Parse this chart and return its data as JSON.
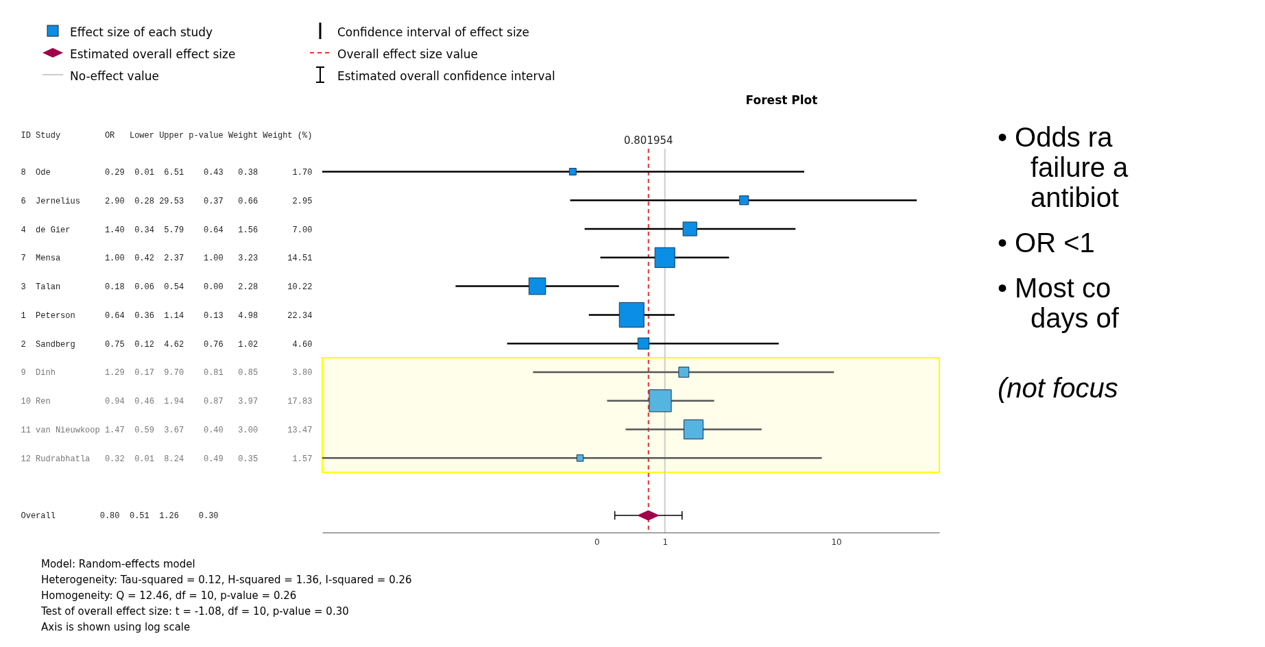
{
  "chart_data": {
    "type": "scatter",
    "orientation": "horizontal",
    "title": "Forest Plot",
    "ylabel": "ID Study         OR   Lower Upper p-value Weight Weight (%)",
    "categories": [
      "8  Ode           0.29  0.01  6.51    0.43   0.38       1.70",
      "6  Jernelius     2.90  0.28 29.53    0.37   0.66       2.95",
      "4  de Gier       1.40  0.34  5.79    0.64   1.56       7.00",
      "7  Mensa         1.00  0.42  2.37    1.00   3.23      14.51",
      "3  Talan         0.18  0.06  0.54    0.00   2.28      10.22",
      "1  Peterson      0.64  0.36  1.14    0.13   4.98      22.34",
      "2  Sandberg      0.75  0.12  4.62    0.76   1.02       4.60",
      "9  Dinh          1.29  0.17  9.70    0.81   0.85       3.80",
      "10 Ren           0.94  0.46  1.94    0.87   3.97      17.83",
      "11 van Nieuwkoop 1.47  0.59  3.67    0.40   3.00      13.47",
      "12 Rudrabhatla   0.32  0.01  8.24    0.49   0.35       1.57",
      null,
      "Overall         0.80  0.51  1.26    0.30"
    ],
    "series": [
      {
        "name": "Effect size of each study",
        "color": "#0a8ee6",
        "marker": "square",
        "colors": [
          "#0a8ee6",
          "#0a8ee6",
          "#0a8ee6",
          "#0a8ee6",
          "#0a8ee6",
          "#0a8ee6",
          "#0a8ee6",
          "#56b4e0",
          "#56b4e0",
          "#56b4e0",
          "#56b4e0",
          null,
          null
        ],
        "values": [
          0.29,
          2.9,
          1.4,
          1.0,
          0.18,
          0.64,
          0.75,
          1.29,
          0.94,
          1.47,
          0.32,
          null,
          null
        ],
        "errors": [
          [
            0.01,
            6.51
          ],
          [
            0.28,
            29.53
          ],
          [
            0.34,
            5.79
          ],
          [
            0.42,
            2.37
          ],
          [
            0.06,
            0.54
          ],
          [
            0.36,
            1.14
          ],
          [
            0.12,
            4.62
          ],
          [
            0.17,
            9.7
          ],
          [
            0.46,
            1.94
          ],
          [
            0.59,
            3.67
          ],
          [
            0.01,
            8.24
          ],
          null,
          null
        ],
        "sizes": [
          0.076,
          0.132,
          0.313,
          0.65,
          0.457,
          1,
          0.206,
          0.17,
          0.798,
          0.603,
          0.07,
          null,
          null
        ]
      },
      {
        "name": "Estimated overall effect size",
        "color": "#a0004a",
        "marker": "diamond",
        "values": [
          null,
          null,
          null,
          null,
          null,
          null,
          null,
          null,
          null,
          null,
          null,
          null,
          0.8
        ],
        "errors": [
          null,
          null,
          null,
          null,
          null,
          null,
          null,
          null,
          null,
          null,
          null,
          null,
          [
            0.51,
            1.26
          ]
        ]
      }
    ],
    "log": "x",
    "xlim": [
      0.01,
      40
    ],
    "xticks": [
      {
        "value": 0.4,
        "label": "0"
      },
      1,
      10
    ],
    "ref_lines": [
      {
        "axis": "x",
        "value": 0.801954,
        "label": "0.801954",
        "color": "#e8312f",
        "line_style": "dashed"
      },
      {
        "axis": "x",
        "value": 1,
        "label": "No-effect value",
        "color": "#cccccc",
        "line_style": "solid"
      }
    ],
    "bands": [
      {
        "axis": "y",
        "from": "9  Dinh          1.29  0.17  9.70    0.81   0.85       3.80",
        "to": "12 Rudrabhatla   0.32  0.01  8.24    0.49   0.35       1.57",
        "color": "#fefeea"
      }
    ],
    "legend": "top left",
    "grid": false,
    "annotations": [
      "Confidence interval of effect size",
      "Overall effect size value",
      "Estimated overall confidence interval",
      "Model: Random-effects model",
      "Heterogeneity: Tau-squared = 0.12, H-squared = 1.36, I-squared = 0.26",
      "Homogeneity: Q = 12.46, df = 10, p-value = 0.26",
      "Test of overall effect size: t = -1.08, df = 10, p-value = 0.30",
      "Axis is shown using log scale",
      "• Odds ra\nfailure a\nantibiot",
      "• OR <1",
      "• Most co\ndays of",
      "(not focus"
    ]
  }
}
